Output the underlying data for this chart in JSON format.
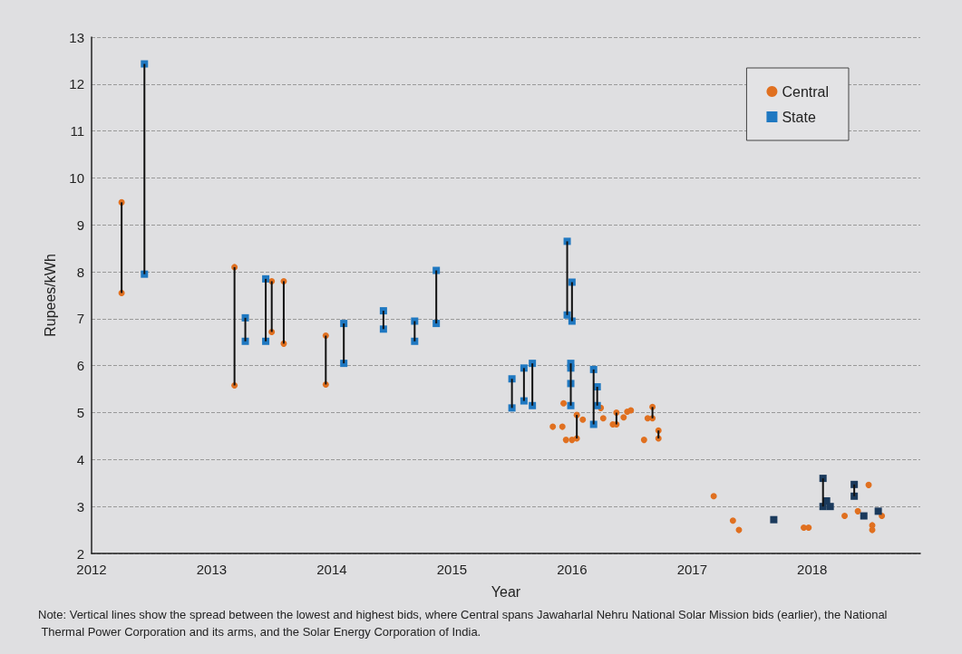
{
  "chart_data": {
    "type": "scatter",
    "xlabel": "Year",
    "ylabel": "Rupees/kWh",
    "xlim": [
      2012,
      2018.9
    ],
    "xticks": [
      2012,
      2013,
      2014,
      2015,
      2016,
      2017,
      2018
    ],
    "ylim": [
      2,
      13
    ],
    "yticks": [
      2,
      3,
      4,
      5,
      6,
      7,
      8,
      9,
      10,
      11,
      12,
      13
    ],
    "grid": "y",
    "legend": "top right",
    "annotations": [
      "Note: Vertical lines show the spread between the lowest and highest bids, where Central spans Jawaharlal Nehru National Solar Mission bids (earlier), the National Thermal Power Corporation and its arms, and the Solar Energy Corporation of India."
    ],
    "series": [
      {
        "type": "bar",
        "color": "#111111",
        "x": [
          2012.25,
          2012.44,
          2013.19,
          2013.28,
          2013.45,
          2013.5,
          2013.6,
          2013.95,
          2014.1,
          2014.43,
          2014.69,
          2014.87,
          2015.5,
          2015.6,
          2015.67,
          2015.96,
          2015.99,
          2016.0,
          2016.04,
          2016.18,
          2016.21,
          2016.37,
          2016.67,
          2016.72,
          2018.09,
          2018.35
        ],
        "base": [
          7.55,
          7.95,
          5.58,
          6.52,
          6.52,
          6.72,
          6.47,
          5.6,
          6.05,
          6.78,
          6.52,
          6.9,
          5.1,
          5.25,
          5.15,
          7.08,
          5.15,
          6.95,
          4.45,
          4.75,
          5.15,
          4.75,
          4.88,
          4.45,
          3.0,
          3.22
        ],
        "values": [
          1.93,
          4.48,
          2.52,
          0.5,
          1.33,
          1.08,
          1.33,
          1.04,
          0.85,
          0.39,
          0.43,
          1.13,
          0.62,
          0.7,
          0.9,
          1.57,
          0.9,
          0.83,
          0.5,
          1.17,
          0.4,
          0.25,
          0.24,
          0.17,
          0.6,
          0.25
        ]
      },
      {
        "name": "Central",
        "color": "#e07020",
        "marker": "circle",
        "x": [
          2012.25,
          2012.25,
          2013.19,
          2013.19,
          2013.5,
          2013.5,
          2013.6,
          2013.6,
          2013.95,
          2013.95,
          2015.93,
          2015.84,
          2015.92,
          2015.95,
          2016.0,
          2016.04,
          2016.04,
          2016.09,
          2016.24,
          2016.26,
          2016.34,
          2016.37,
          2016.37,
          2016.43,
          2016.46,
          2016.49,
          2016.6,
          2016.63,
          2016.67,
          2016.67,
          2016.72,
          2016.72,
          2017.18,
          2017.34,
          2017.39,
          2017.93,
          2017.97,
          2018.27,
          2018.38,
          2018.47,
          2018.5,
          2018.5,
          2018.58
        ],
        "values": [
          7.55,
          9.48,
          5.58,
          8.1,
          6.72,
          7.8,
          6.47,
          7.8,
          5.6,
          6.64,
          5.2,
          4.7,
          4.7,
          4.42,
          4.42,
          4.95,
          4.45,
          4.85,
          5.1,
          4.88,
          4.75,
          5.0,
          4.75,
          4.9,
          5.02,
          5.05,
          4.42,
          4.88,
          5.12,
          4.88,
          4.62,
          4.45,
          3.22,
          2.7,
          2.5,
          2.55,
          2.55,
          2.8,
          2.9,
          3.46,
          2.6,
          2.5,
          2.8
        ]
      },
      {
        "name": "State",
        "color": "#1f78c1",
        "marker": "square",
        "x": [
          2012.44,
          2012.44,
          2013.28,
          2013.28,
          2013.45,
          2013.45,
          2014.1,
          2014.1,
          2014.43,
          2014.43,
          2014.69,
          2014.69,
          2014.87,
          2014.87,
          2015.5,
          2015.5,
          2015.6,
          2015.6,
          2015.67,
          2015.67,
          2015.96,
          2015.96,
          2016.0,
          2016.0,
          2015.99,
          2015.99,
          2015.99,
          2015.99,
          2016.18,
          2016.18,
          2016.21,
          2016.21
        ],
        "values": [
          7.95,
          12.43,
          6.52,
          7.02,
          6.52,
          7.85,
          6.05,
          6.9,
          6.78,
          7.17,
          6.52,
          6.95,
          6.9,
          8.03,
          5.1,
          5.72,
          5.25,
          5.95,
          5.15,
          6.05,
          7.08,
          8.65,
          6.95,
          7.78,
          5.15,
          5.62,
          5.95,
          6.05,
          4.75,
          5.92,
          5.15,
          5.55
        ]
      },
      {
        "color": "#1b3a5c",
        "marker": "square",
        "x": [
          2017.68,
          2018.09,
          2018.09,
          2018.12,
          2018.15,
          2018.35,
          2018.35,
          2018.43,
          2018.55
        ],
        "values": [
          2.72,
          3.0,
          3.6,
          3.12,
          3.0,
          3.22,
          3.47,
          2.8,
          2.9
        ]
      }
    ]
  }
}
